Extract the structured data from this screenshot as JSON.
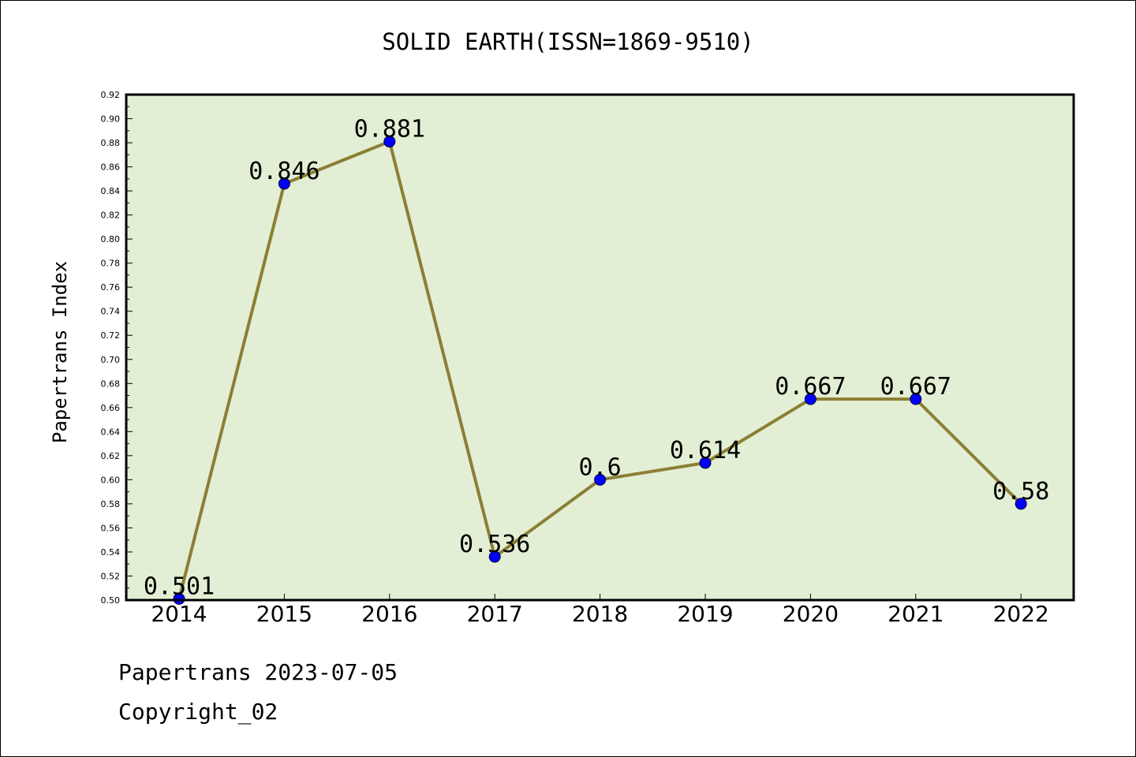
{
  "chart_data": {
    "type": "line",
    "title": "SOLID EARTH(ISSN=1869-9510)",
    "ylabel": "Papertrans Index",
    "xlabel": "",
    "categories": [
      "2014",
      "2015",
      "2016",
      "2017",
      "2018",
      "2019",
      "2020",
      "2021",
      "2022"
    ],
    "series": [
      {
        "values": [
          0.501,
          0.846,
          0.881,
          0.536,
          0.6,
          0.614,
          0.667,
          0.667,
          0.58
        ],
        "labels": [
          "0.501",
          "0.846",
          "0.881",
          "0.536",
          "0.6",
          "0.614",
          "0.667",
          "0.667",
          "0.58"
        ]
      }
    ],
    "ylim": [
      0.5,
      0.92
    ],
    "ytick_labels": [
      "0.50",
      "0.52",
      "0.54",
      "0.56",
      "0.58",
      "0.60",
      "0.62",
      "0.64",
      "0.66",
      "0.68",
      "0.70",
      "0.72",
      "0.74",
      "0.76",
      "0.78",
      "0.80",
      "0.82",
      "0.84",
      "0.86",
      "0.88",
      "0.90",
      "0.92"
    ],
    "grid": false,
    "colors": {
      "plot_background": "#e2efd4",
      "line": "#8b7f35",
      "marker": "#0000ff"
    }
  },
  "footer": {
    "line1": "Papertrans 2023-07-05",
    "line2": "Copyright_02"
  }
}
